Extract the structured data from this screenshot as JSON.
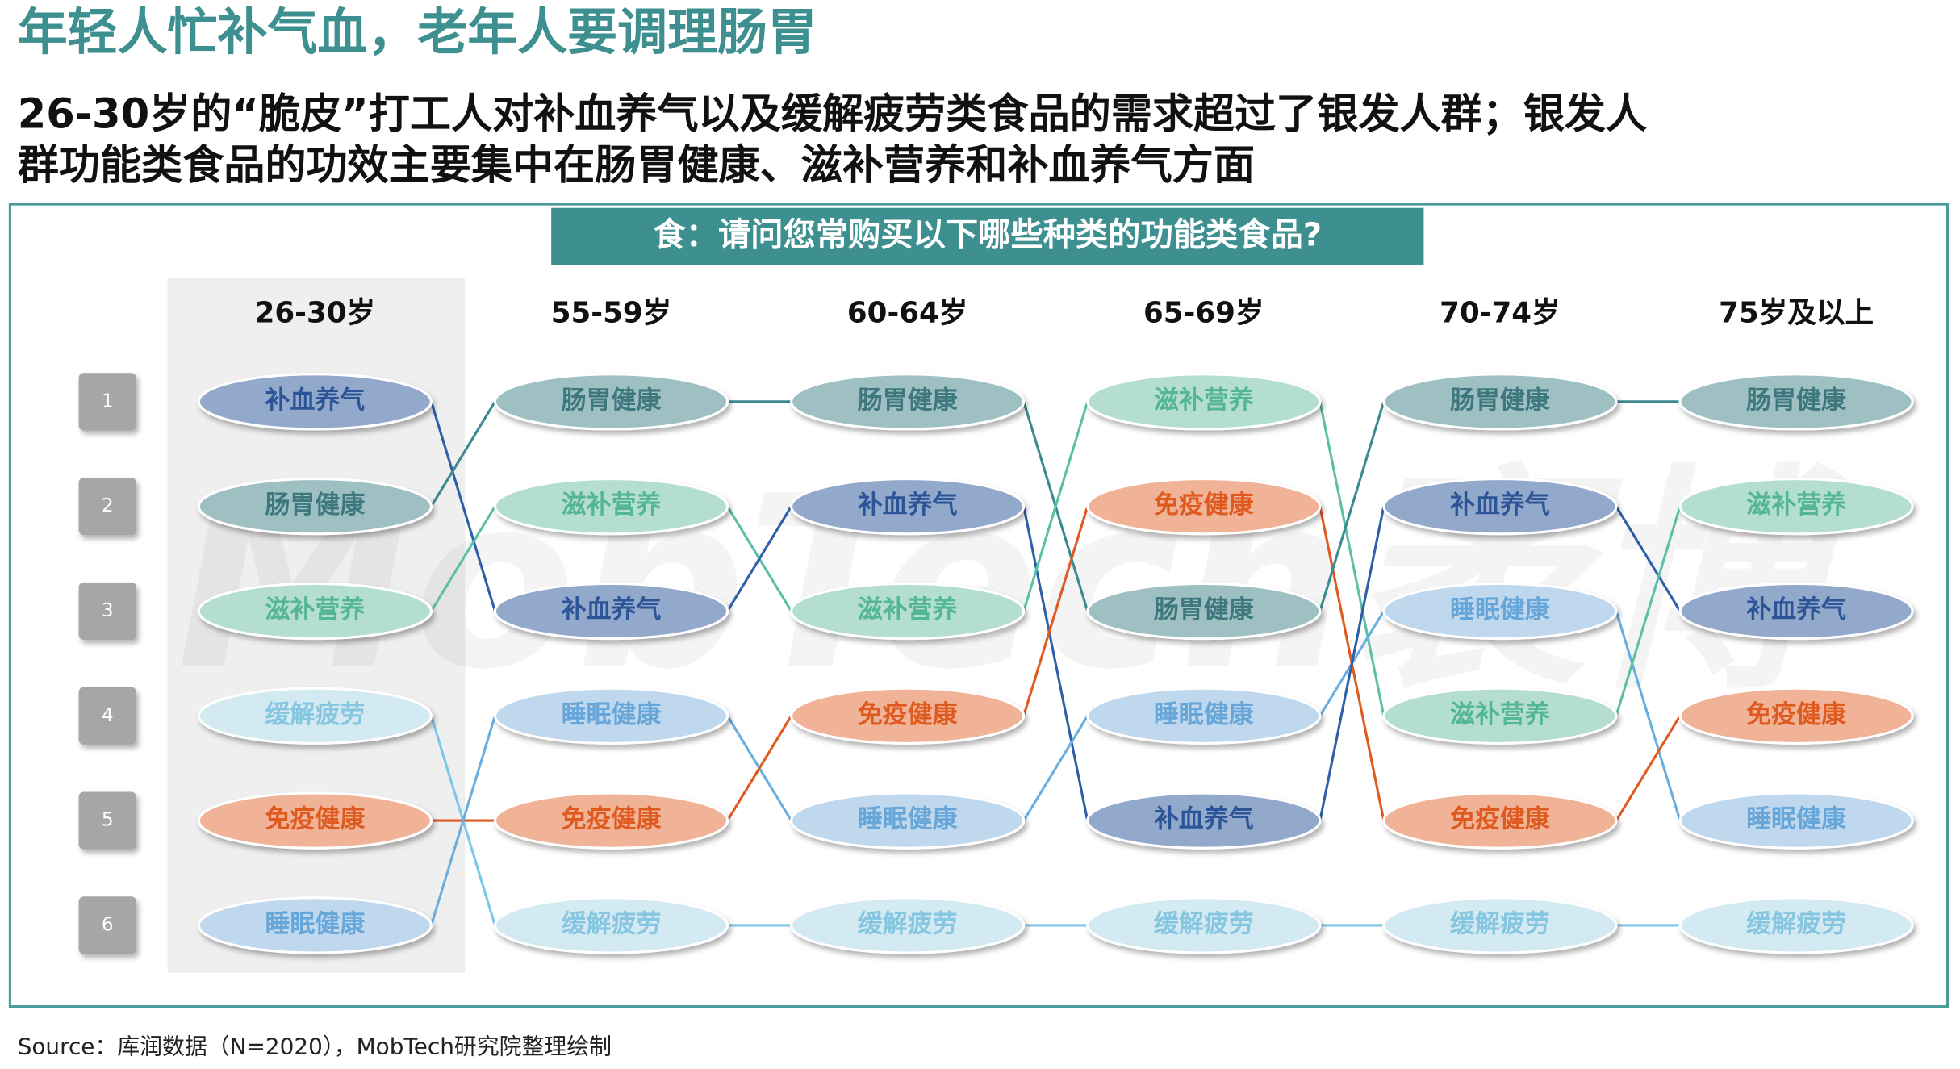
{
  "title": "年轻人忙补气血，老年人要调理肠胃",
  "subtitle": [
    "26-30岁的“脆皮”打工人对补血养气以及缓解疲劳类食品的需求超过了银发人群；银发人",
    "群功能类食品的功效主要集中在肠胃健康、滋补营养和补血养气方面"
  ],
  "question": "食：请问您常购买以下哪些种类的功能类食品?",
  "watermark": "MobTech袤博",
  "ranks": [
    "1",
    "2",
    "3",
    "4",
    "5",
    "6"
  ],
  "columns": [
    {
      "header": "26-30岁",
      "items": [
        "补血养气",
        "肠胃健康",
        "滋补营养",
        "缓解疲劳",
        "免疫健康",
        "睡眠健康"
      ]
    },
    {
      "header": "55-59岁",
      "items": [
        "肠胃健康",
        "滋补营养",
        "补血养气",
        "睡眠健康",
        "免疫健康",
        "缓解疲劳"
      ]
    },
    {
      "header": "60-64岁",
      "items": [
        "肠胃健康",
        "补血养气",
        "滋补营养",
        "免疫健康",
        "睡眠健康",
        "缓解疲劳"
      ]
    },
    {
      "header": "65-69岁",
      "items": [
        "滋补营养",
        "免疫健康",
        "肠胃健康",
        "睡眠健康",
        "补血养气",
        "缓解疲劳"
      ]
    },
    {
      "header": "70-74岁",
      "items": [
        "肠胃健康",
        "补血养气",
        "睡眠健康",
        "滋补营养",
        "免疫健康",
        "缓解疲劳"
      ]
    },
    {
      "header": "75岁及以上",
      "items": [
        "肠胃健康",
        "滋补营养",
        "补血养气",
        "免疫健康",
        "睡眠健康",
        "缓解疲劳"
      ]
    }
  ],
  "colors": {
    "补血养气": {
      "fill": "#93a9cb",
      "text": "#2c5597",
      "line": "#2e5fa8"
    },
    "肠胃健康": {
      "fill": "#9fc0c2",
      "text": "#3d787e",
      "line": "#3a8a90"
    },
    "滋补营养": {
      "fill": "#b4dfd0",
      "text": "#55b597",
      "line": "#5cc0a8"
    },
    "缓解疲劳": {
      "fill": "#d3eaf3",
      "text": "#86c6e0",
      "line": "#7cc8e8"
    },
    "免疫健康": {
      "fill": "#f1b397",
      "text": "#de5a1e",
      "line": "#e05a20"
    },
    "睡眠健康": {
      "fill": "#c0d8ee",
      "text": "#66a6d8",
      "line": "#6aaee0"
    }
  },
  "source": "Source：库润数据（N=2020），MobTech研究院整理绘制"
}
